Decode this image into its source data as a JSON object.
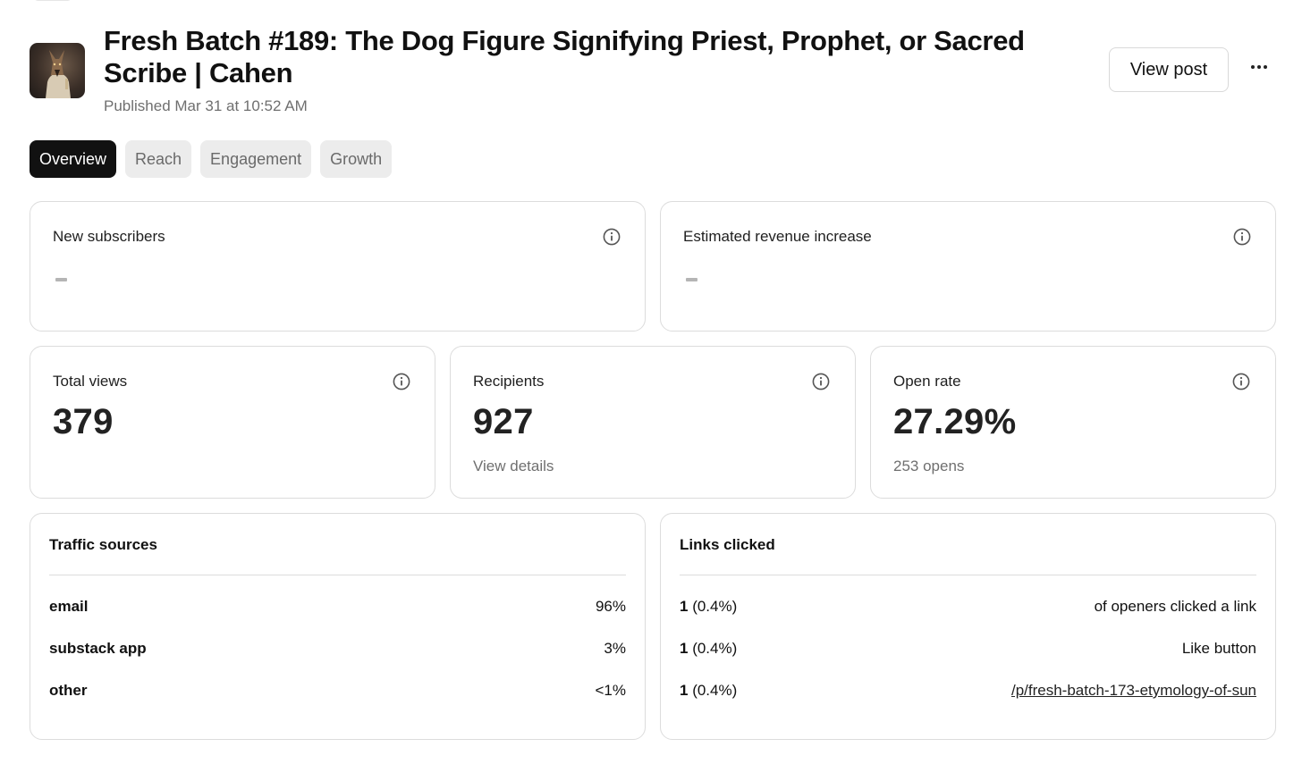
{
  "header": {
    "title": "Fresh Batch #189: The Dog Figure Signifying Priest, Prophet, or Sacred Scribe | Cahen",
    "published": "Published Mar 31 at 10:52 AM",
    "view_post_label": "View post"
  },
  "tabs": [
    {
      "label": "Overview",
      "active": true
    },
    {
      "label": "Reach",
      "active": false
    },
    {
      "label": "Engagement",
      "active": false
    },
    {
      "label": "Growth",
      "active": false
    }
  ],
  "cards": {
    "new_subscribers": {
      "label": "New subscribers"
    },
    "revenue": {
      "label": "Estimated revenue increase"
    },
    "total_views": {
      "label": "Total views",
      "value": "379"
    },
    "recipients": {
      "label": "Recipients",
      "value": "927",
      "sub": "View details"
    },
    "open_rate": {
      "label": "Open rate",
      "value": "27.29%",
      "sub": "253 opens"
    }
  },
  "traffic_sources": {
    "title": "Traffic sources",
    "rows": [
      {
        "name": "email",
        "value": "96%"
      },
      {
        "name": "substack app",
        "value": "3%"
      },
      {
        "name": "other",
        "value": "<1%"
      }
    ]
  },
  "links_clicked": {
    "title": "Links clicked",
    "rows": [
      {
        "count": "1",
        "pct": " (0.4%)",
        "label": "of openers clicked a link"
      },
      {
        "count": "1",
        "pct": " (0.4%)",
        "label": "Like button"
      },
      {
        "count": "1",
        "pct": " (0.4%)",
        "label": "/p/fresh-batch-173-etymology-of-sun"
      }
    ]
  },
  "colors": {
    "accent": "#111111",
    "muted": "#6f6f6f",
    "border": "#dcdcdc",
    "tab_bg": "#ececec"
  },
  "icons": [
    "info-icon",
    "more-icon",
    "post-thumbnail"
  ]
}
